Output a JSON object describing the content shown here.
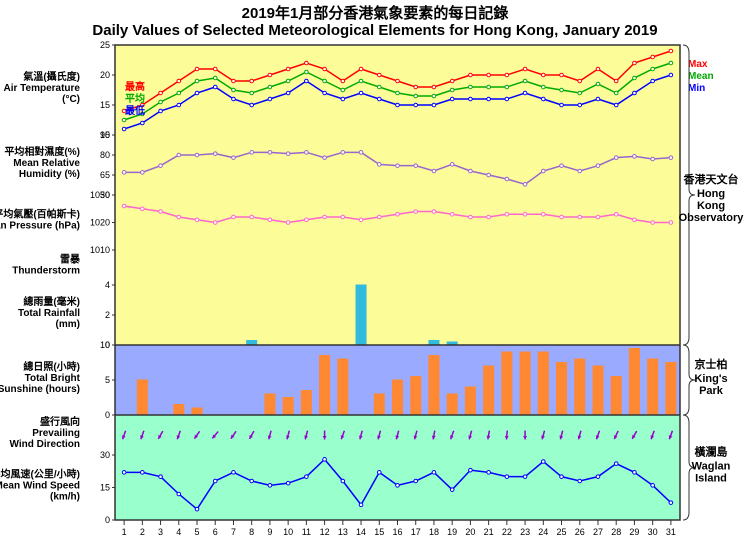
{
  "title_ch": "2019年1月部分香港氣象要素的每日記錄",
  "title_en": "Daily Values of Selected Meteorological Elements for Hong Kong, January 2019",
  "days": 31,
  "panels": {
    "temp": {
      "ylabel_ch": "氣溫(攝氏度)",
      "ylabel_en": "Air Temperature (°C)",
      "ylim": [
        10,
        25
      ],
      "ystep": 5,
      "bg": "#fcfc99",
      "series": {
        "max": {
          "color": "#ff0000",
          "label_ch": "最高",
          "label_en": "Max",
          "values": [
            14,
            15,
            17,
            19,
            21,
            21,
            19,
            19,
            20,
            21,
            22,
            21,
            19,
            21,
            20,
            19,
            18,
            18,
            19,
            20,
            20,
            20,
            21,
            20,
            20,
            19,
            21,
            19,
            22,
            23,
            24
          ]
        },
        "mean": {
          "color": "#00aa00",
          "label_ch": "平均",
          "label_en": "Mean",
          "values": [
            12.5,
            13.5,
            15.5,
            17,
            19,
            19.5,
            17.5,
            17,
            18,
            19,
            20.5,
            19,
            17.5,
            19,
            18,
            17,
            16.5,
            16.5,
            17.5,
            18,
            18,
            18,
            19,
            18,
            17.5,
            17,
            18.5,
            17,
            19.5,
            21,
            22
          ]
        },
        "min": {
          "color": "#0000ff",
          "label_ch": "最低",
          "label_en": "Min",
          "values": [
            11,
            12,
            14,
            15,
            17,
            18,
            16,
            15,
            16,
            17,
            19,
            17,
            16,
            17,
            16,
            15,
            15,
            15,
            16,
            16,
            16,
            16,
            17,
            16,
            15,
            15,
            16,
            15,
            17,
            19,
            20
          ]
        }
      }
    },
    "humidity": {
      "ylabel_ch": "平均相對濕度(%)",
      "ylabel_en": "Mean Relative Humidity (%)",
      "ylim": [
        50,
        95
      ],
      "ystep": 15,
      "bg": "#fcfc99",
      "color": "#9966cc",
      "values": [
        67,
        67,
        72,
        80,
        80,
        81,
        78,
        82,
        82,
        81,
        82,
        78,
        82,
        82,
        73,
        72,
        72,
        68,
        73,
        68,
        65,
        62,
        58,
        68,
        72,
        68,
        72,
        78,
        79,
        77,
        78
      ]
    },
    "pressure": {
      "ylabel_ch": "平均氣壓(百帕斯卡)",
      "ylabel_en": "Mean Pressure (hPa)",
      "ylim": [
        1010,
        1030
      ],
      "ystep": 10,
      "bg": "#fcfc99",
      "color": "#ff66cc",
      "values": [
        1026,
        1025,
        1024,
        1022,
        1021,
        1020,
        1022,
        1022,
        1021,
        1020,
        1021,
        1022,
        1022,
        1021,
        1022,
        1023,
        1024,
        1024,
        1023,
        1022,
        1022,
        1023,
        1023,
        1023,
        1022,
        1022,
        1022,
        1023,
        1021,
        1020,
        1020
      ]
    },
    "thunder": {
      "ylabel_ch": "雷暴",
      "ylabel_en": "Thunderstorm",
      "bg": "#fcfc99"
    },
    "rainfall": {
      "ylabel_ch": "總雨量(毫米)",
      "ylabel_en": "Total Rainfall (mm)",
      "ylim": [
        0,
        4
      ],
      "ystep": 2,
      "bg": "#fcfc99",
      "bar_color": "#33bbdd",
      "values": [
        0,
        0,
        0,
        0,
        0,
        0,
        0,
        0.3,
        0,
        0,
        0,
        0,
        0,
        4,
        0,
        0,
        0,
        0.3,
        0.2,
        0,
        0,
        0,
        0,
        0,
        0,
        0,
        0,
        0,
        0,
        0,
        0
      ]
    },
    "sunshine": {
      "ylabel_ch": "總日照(小時)",
      "ylabel_en": "Total Bright Sunshine (hours)",
      "ylim": [
        0,
        10
      ],
      "ystep": 5,
      "bg": "#99aaff",
      "bar_color": "#ff8833",
      "values": [
        0,
        5,
        0,
        1.5,
        1,
        0,
        0,
        0,
        3,
        2.5,
        3.5,
        8.5,
        8,
        0,
        3,
        5,
        5.5,
        8.5,
        3,
        4,
        7,
        9,
        9,
        9,
        7.5,
        8,
        7,
        5.5,
        9.5,
        8,
        7.5
      ],
      "right_ch": "京士柏",
      "right_en": "King's Park"
    },
    "winddir": {
      "ylabel_ch": "盛行風向",
      "ylabel_en": "Prevailing Wind Direction",
      "bg": "#99ffcc",
      "arrow_color": "#9900cc",
      "angles": [
        200,
        200,
        210,
        200,
        215,
        220,
        215,
        210,
        195,
        195,
        195,
        180,
        200,
        195,
        195,
        195,
        195,
        190,
        200,
        195,
        190,
        185,
        180,
        195,
        195,
        195,
        200,
        205,
        210,
        200,
        200
      ]
    },
    "windspeed": {
      "ylabel_ch": "平均風速(公里/小時)",
      "ylabel_en": "Mean Wind Speed (km/h)",
      "ylim": [
        0,
        30
      ],
      "ystep": 15,
      "bg": "#99ffcc",
      "color": "#0000ff",
      "values": [
        22,
        22,
        20,
        12,
        5,
        18,
        22,
        18,
        16,
        17,
        20,
        28,
        18,
        7,
        22,
        16,
        18,
        22,
        14,
        23,
        22,
        20,
        20,
        27,
        20,
        18,
        20,
        26,
        22,
        16,
        8
      ],
      "right_ch": "橫瀾島",
      "right_en": "Waglan Island"
    }
  },
  "right_obs_ch": "香港天文台",
  "right_obs_en": "Hong Kong Observatory",
  "frame_color": "#333333",
  "grid_color": "#666666"
}
